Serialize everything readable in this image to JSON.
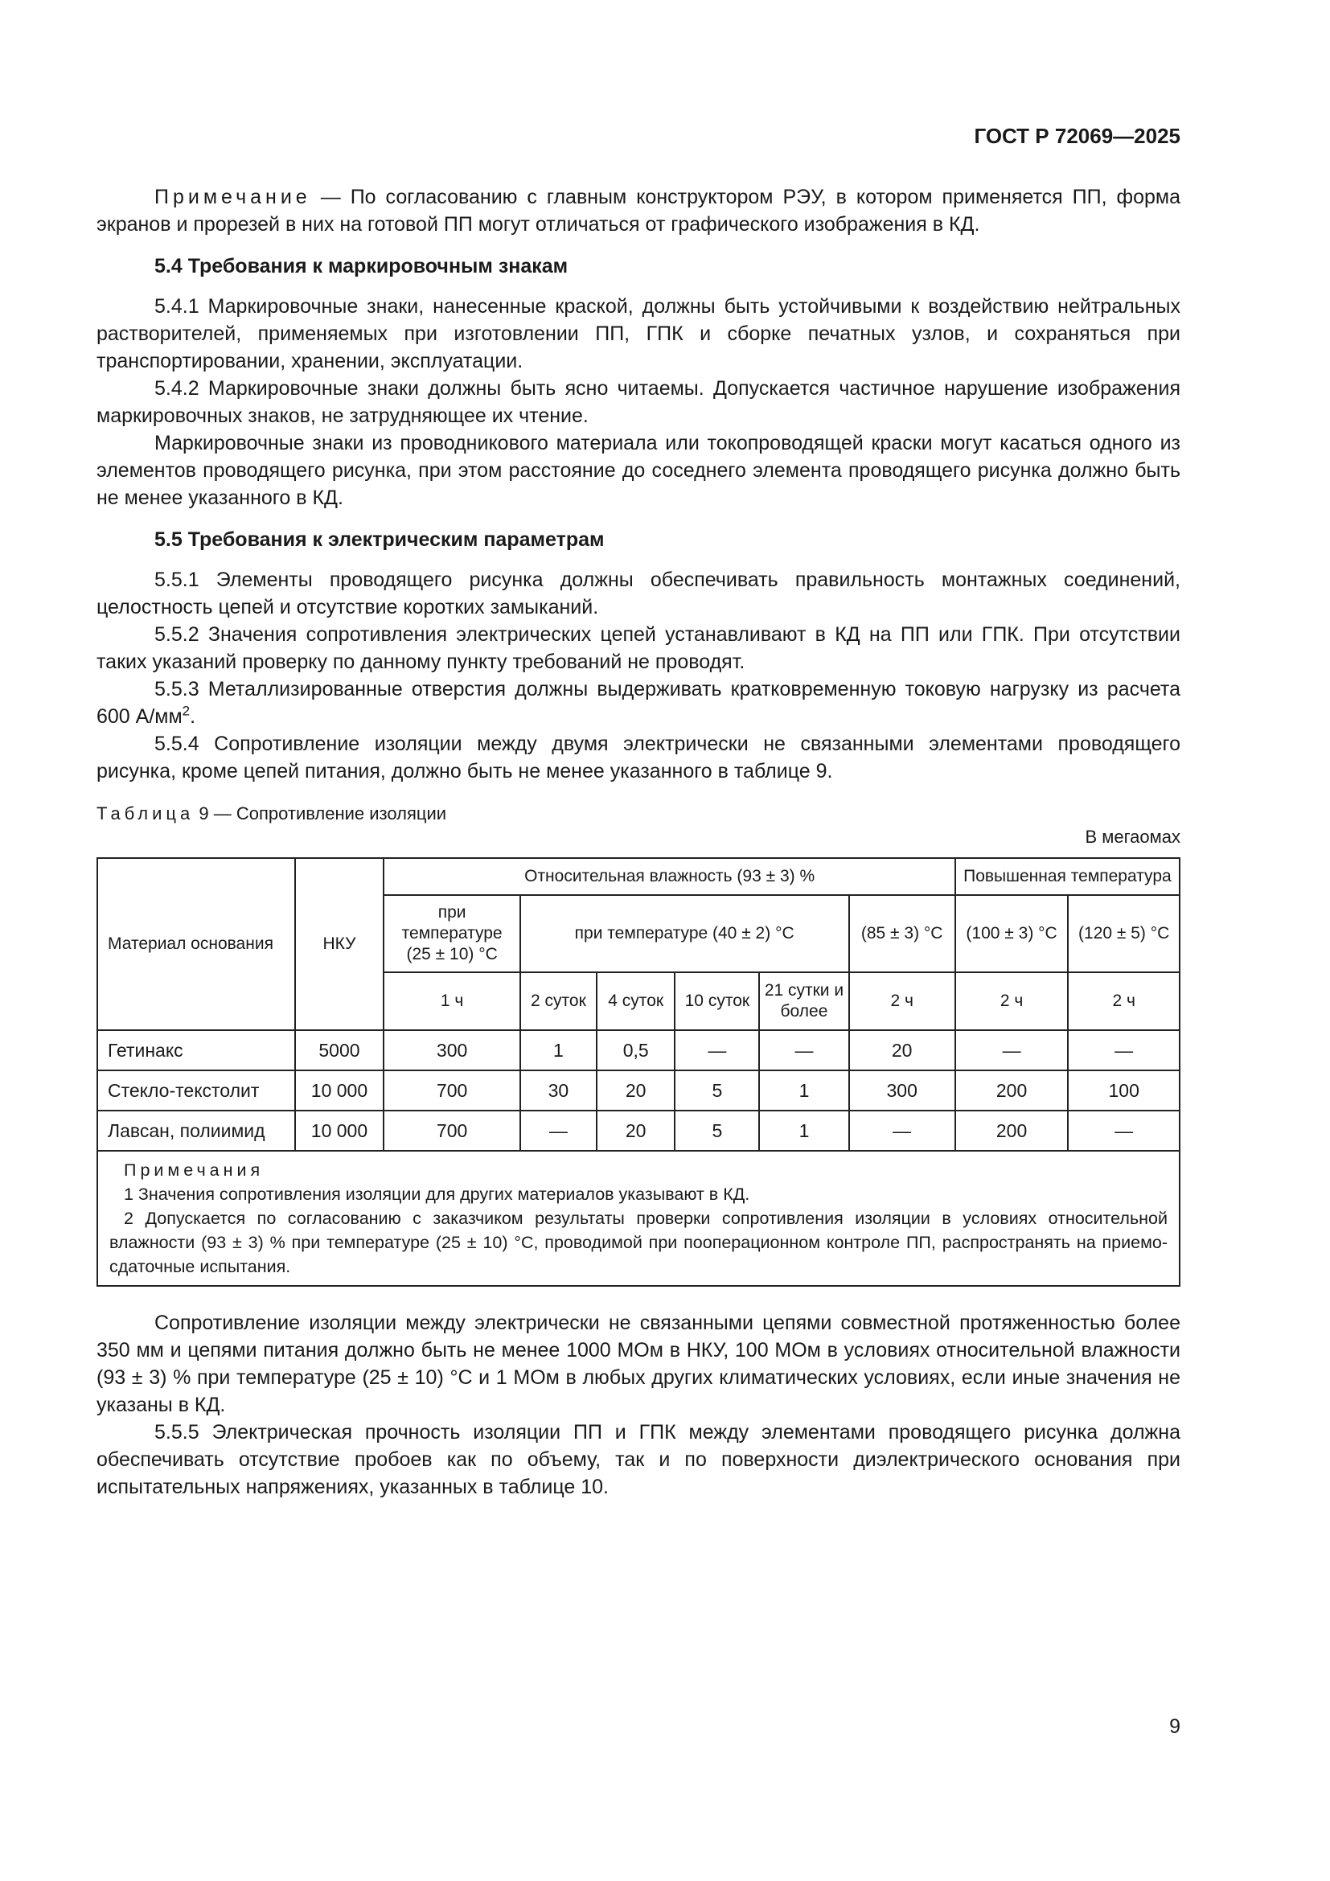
{
  "header": "ГОСТ Р 72069—2025",
  "note_label": "Примечание",
  "note_text": " — По согласованию с главным конструктором РЭУ, в котором применяется ПП, форма экранов и прорезей в них на готовой ПП могут отличаться от графического изображения в КД.",
  "s54": {
    "title": "5.4 Требования к маркировочным знакам",
    "p1": "5.4.1 Маркировочные знаки, нанесенные краской, должны быть устойчивыми к воздействию нейтральных растворителей, применяемых при изготовлении ПП, ГПК и сборке печатных узлов, и сохраняться при транспортировании, хранении, эксплуатации.",
    "p2": "5.4.2 Маркировочные знаки должны быть ясно читаемы. Допускается частичное нарушение изображения маркировочных знаков, не затрудняющее их чтение.",
    "p3": "Маркировочные знаки из проводникового материала или токопроводящей краски могут касаться одного из элементов проводящего рисунка, при этом расстояние до соседнего элемента проводящего рисунка должно быть не менее указанного в КД."
  },
  "s55": {
    "title": "5.5 Требования к электрическим параметрам",
    "p1": "5.5.1 Элементы проводящего рисунка должны обеспечивать правильность монтажных соединений, целостность цепей и отсутствие коротких замыканий.",
    "p2": "5.5.2 Значения сопротивления электрических цепей устанавливают в КД на ПП или ГПК. При отсутствии таких указаний проверку по данному пункту требований не проводят.",
    "p3": "5.5.3 Металлизированные отверстия должны выдерживать кратковременную токовую нагрузку из расчета 600 А/мм",
    "p3_sup": "2",
    "p3_end": ".",
    "p4": "5.5.4 Сопротивление изоляции между двумя электрически не связанными элементами проводящего рисунка, кроме цепей питания, должно быть не менее указанного в таблице 9."
  },
  "table": {
    "caption_label": "Таблица",
    "caption_text": " 9 — Сопротивление изоляции",
    "units": "В мегаомах",
    "h_material": "Материал основания",
    "h_nku": "НКУ",
    "h_humidity": "Относительная влажность (93 ± 3) %",
    "h_hightemp": "Повышенная температура",
    "h_t25": "при температуре (25 ± 10) °C",
    "h_t40": "при температуре (40 ± 2) °C",
    "h_t85": "(85 ± 3) °C",
    "h_t100": "(100 ± 3) °C",
    "h_t120": "(120 ± 5) °C",
    "durations": [
      "1 ч",
      "2 суток",
      "4 суток",
      "10 суток",
      "21 сутки и более",
      "2 ч",
      "2 ч",
      "2 ч"
    ],
    "rows": [
      [
        "Гетинакс",
        "5000",
        "300",
        "1",
        "0,5",
        "—",
        "—",
        "20",
        "—",
        "—"
      ],
      [
        "Стекло-текстолит",
        "10 000",
        "700",
        "30",
        "20",
        "5",
        "1",
        "300",
        "200",
        "100"
      ],
      [
        "Лавсан, полиимид",
        "10 000",
        "700",
        "—",
        "20",
        "5",
        "1",
        "—",
        "200",
        "—"
      ]
    ],
    "notes_label": "Примечания",
    "note1": "1 Значения сопротивления изоляции для других материалов указывают в КД.",
    "note2": "2 Допускается по согласованию с заказчиком результаты проверки сопротивления изоляции в условиях относительной влажности (93 ± 3) % при температуре (25 ± 10) °С, проводимой при пооперационном контроле ПП, распространять на приемо-сдаточные испытания."
  },
  "after1": "Сопротивление изоляции между электрически не связанными цепями совместной протяженностью более 350 мм и цепями питания должно быть не менее 1000 МОм в НКУ, 100 МОм в условиях относительной влажности (93 ± 3) % при температуре (25 ± 10) °С и 1 МОм в любых других климатических условиях, если иные значения не указаны в КД.",
  "after2": "5.5.5 Электрическая прочность изоляции ПП и ГПК между элементами проводящего рисунка должна обеспечивать отсутствие пробоев как по объему, так и по поверхности диэлектрического основания при испытательных напряжениях, указанных в таблице 10.",
  "page_number": "9"
}
